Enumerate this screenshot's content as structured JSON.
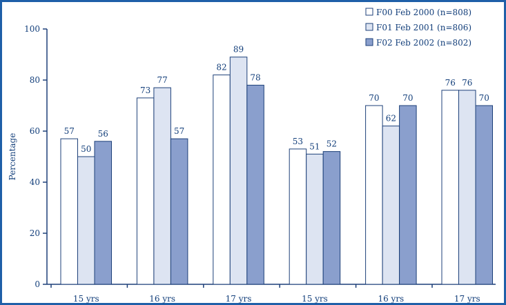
{
  "chart_data": {
    "type": "bar",
    "title": "",
    "xlabel": "",
    "ylabel": "Percentage",
    "ylim": [
      0,
      100
    ],
    "yticks": [
      0,
      20,
      40,
      60,
      80,
      100
    ],
    "grid": false,
    "legend_position": "top-right",
    "categories": [
      "15 yrs",
      "16 yrs",
      "17 yrs",
      "15 yrs",
      "16 yrs",
      "17 yrs"
    ],
    "series": [
      {
        "name": "F00 Feb 2000 (n=808)",
        "values": [
          57,
          73,
          82,
          53,
          70,
          76
        ],
        "color": "#ffffff"
      },
      {
        "name": "F01 Feb 2001 (n=806)",
        "values": [
          50,
          77,
          89,
          51,
          62,
          76
        ],
        "color": "#dde4f2"
      },
      {
        "name": "F02 Feb 2002 (n=802)",
        "values": [
          56,
          57,
          78,
          52,
          70,
          70
        ],
        "color": "#8a9fcd"
      }
    ],
    "colors": {
      "axis": "#1c3f78",
      "text": "#123e7a",
      "frame": "#1f5fa8"
    }
  }
}
